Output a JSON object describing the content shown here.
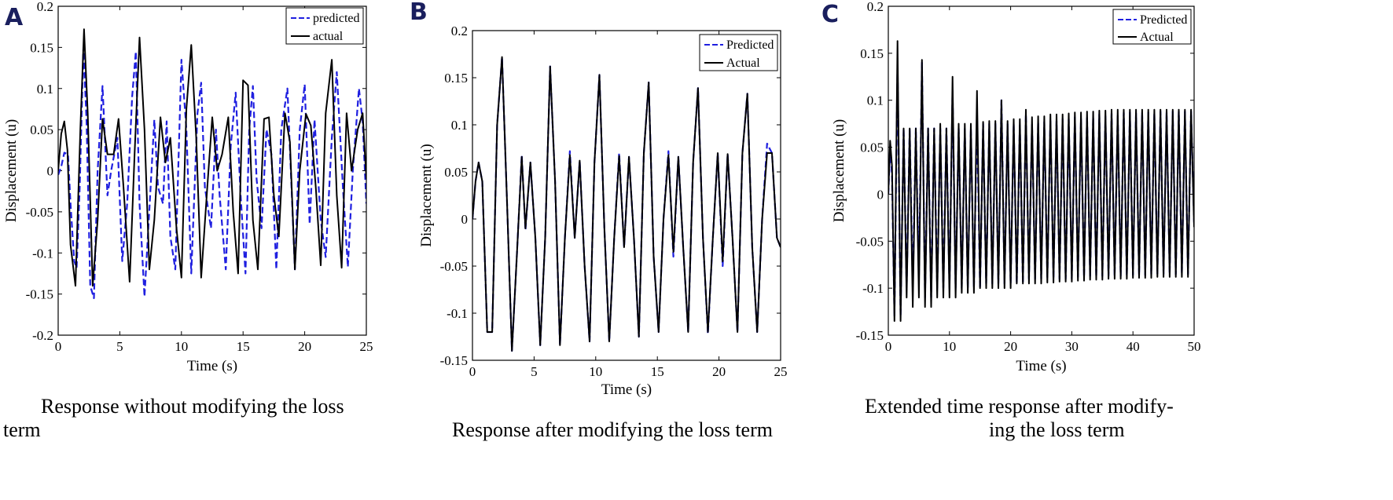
{
  "chart_data": [
    {
      "panel": "A",
      "type": "line",
      "xlabel": "Time (s)",
      "ylabel": "Displacement (u)",
      "xlim": [
        0,
        25
      ],
      "ylim": [
        -0.2,
        0.2
      ],
      "xticks": [
        0,
        5,
        10,
        15,
        20,
        25
      ],
      "yticks": [
        -0.2,
        -0.15,
        -0.1,
        -0.05,
        0,
        0.05,
        0.1,
        0.15,
        0.2
      ],
      "legend_position": "top-right",
      "caption": [
        "Response without modifying the loss",
        "term"
      ],
      "series": [
        {
          "name": "predicted",
          "color": "#1f1fe0",
          "style": "dashed",
          "x": [
            0,
            0.25,
            0.5,
            0.8,
            1.0,
            1.3,
            1.5,
            1.75,
            2.05,
            2.3,
            2.6,
            2.9,
            3.2,
            3.6,
            4.0,
            4.3,
            4.8,
            5.2,
            5.6,
            6.0,
            6.3,
            6.6,
            7.0,
            7.5,
            7.8,
            8.1,
            8.5,
            8.8,
            9.1,
            9.5,
            10.0,
            10.4,
            10.8,
            11.3,
            11.6,
            11.9,
            12.4,
            12.8,
            13.1,
            13.6,
            14.0,
            14.4,
            14.8,
            15.2,
            15.5,
            15.8,
            16.1,
            16.5,
            16.9,
            17.3,
            17.7,
            18.1,
            18.6,
            18.9,
            19.2,
            19.6,
            20.0,
            20.4,
            20.8,
            21.3,
            21.7,
            22.2,
            22.6,
            23.1,
            23.5,
            23.9,
            24.4,
            24.7,
            25.0
          ],
          "y": [
            -0.005,
            0.005,
            0.022,
            0.02,
            -0.04,
            -0.11,
            -0.118,
            -0.02,
            0.15,
            0.06,
            -0.14,
            -0.155,
            0.0,
            0.103,
            -0.03,
            0.0,
            0.04,
            -0.11,
            -0.04,
            0.09,
            0.145,
            -0.04,
            -0.153,
            -0.02,
            0.062,
            -0.02,
            -0.04,
            0.06,
            -0.08,
            -0.12,
            0.135,
            0.05,
            -0.125,
            0.07,
            0.107,
            -0.02,
            -0.07,
            0.05,
            -0.03,
            -0.12,
            0.03,
            0.095,
            -0.03,
            -0.125,
            0.05,
            0.103,
            -0.01,
            -0.07,
            0.05,
            0.02,
            -0.12,
            0.05,
            0.1,
            -0.01,
            -0.12,
            0.05,
            0.105,
            -0.065,
            0.062,
            -0.06,
            -0.105,
            0.04,
            0.12,
            -0.02,
            -0.117,
            0.0,
            0.1,
            0.06,
            -0.04
          ]
        },
        {
          "name": "actual",
          "color": "#000000",
          "style": "solid",
          "x": [
            0,
            0.25,
            0.5,
            0.75,
            1.0,
            1.4,
            1.8,
            2.1,
            2.4,
            2.8,
            3.2,
            3.6,
            4.0,
            4.5,
            4.9,
            5.3,
            5.8,
            6.2,
            6.6,
            7.0,
            7.4,
            7.8,
            8.3,
            8.7,
            9.1,
            9.6,
            10.0,
            10.4,
            10.8,
            11.2,
            11.6,
            12.1,
            12.5,
            12.9,
            13.3,
            13.8,
            14.2,
            14.6,
            15.0,
            15.4,
            15.8,
            16.2,
            16.7,
            17.1,
            17.5,
            17.9,
            18.4,
            18.8,
            19.2,
            19.6,
            20.1,
            20.5,
            20.9,
            21.3,
            21.7,
            22.2,
            22.6,
            23.0,
            23.4,
            23.8,
            24.3,
            24.7,
            25.0
          ],
          "y": [
            0,
            0.045,
            0.06,
            0.025,
            -0.09,
            -0.14,
            0.05,
            0.172,
            0.07,
            -0.14,
            -0.06,
            0.063,
            0.02,
            0.02,
            0.063,
            -0.02,
            -0.135,
            0.02,
            0.162,
            0.05,
            -0.12,
            -0.06,
            0.065,
            0.01,
            0.04,
            -0.07,
            -0.13,
            0.075,
            0.153,
            0.04,
            -0.13,
            -0.02,
            0.065,
            0.0,
            0.02,
            0.065,
            -0.05,
            -0.125,
            0.11,
            0.104,
            -0.06,
            -0.12,
            0.063,
            0.065,
            -0.03,
            -0.08,
            0.07,
            0.035,
            -0.12,
            0.0,
            0.069,
            0.055,
            -0.02,
            -0.115,
            0.07,
            0.135,
            -0.03,
            -0.118,
            0.07,
            0.0,
            0.05,
            0.07,
            -0.01
          ]
        }
      ]
    },
    {
      "panel": "B",
      "type": "line",
      "xlabel": "Time (s)",
      "ylabel": "Displacement (u)",
      "xlim": [
        0,
        25
      ],
      "ylim": [
        -0.15,
        0.2
      ],
      "xticks": [
        0,
        5,
        10,
        15,
        20,
        25
      ],
      "yticks": [
        -0.15,
        -0.1,
        -0.05,
        0,
        0.05,
        0.1,
        0.15,
        0.2
      ],
      "legend_position": "top-right",
      "caption": [
        "Response after modifying the loss term"
      ],
      "series": [
        {
          "name": "Predicted",
          "color": "#1f1fe0",
          "style": "dashed",
          "x": [
            0,
            0.25,
            0.5,
            0.8,
            1.2,
            1.6,
            2.0,
            2.4,
            2.8,
            3.2,
            3.6,
            4.0,
            4.3,
            4.7,
            5.1,
            5.5,
            5.9,
            6.3,
            6.7,
            7.1,
            7.5,
            7.9,
            8.3,
            8.7,
            9.1,
            9.5,
            9.9,
            10.3,
            10.7,
            11.1,
            11.5,
            11.9,
            12.3,
            12.7,
            13.1,
            13.5,
            13.9,
            14.3,
            14.7,
            15.1,
            15.5,
            15.9,
            16.3,
            16.7,
            17.1,
            17.5,
            17.9,
            18.3,
            18.7,
            19.1,
            19.5,
            19.9,
            20.3,
            20.7,
            21.1,
            21.5,
            21.9,
            22.3,
            22.7,
            23.1,
            23.5,
            23.9,
            24.3,
            24.7,
            25.0
          ],
          "y": [
            0,
            0.04,
            0.06,
            0.04,
            -0.12,
            -0.12,
            0.1,
            0.172,
            0.02,
            -0.14,
            -0.04,
            0.068,
            -0.012,
            0.06,
            -0.02,
            -0.134,
            -0.02,
            0.162,
            0.04,
            -0.134,
            -0.02,
            0.072,
            -0.02,
            0.062,
            -0.05,
            -0.13,
            0.06,
            0.153,
            -0.01,
            -0.13,
            -0.02,
            0.07,
            -0.03,
            0.066,
            -0.02,
            -0.125,
            0.07,
            0.145,
            -0.04,
            -0.12,
            0.0,
            0.072,
            -0.04,
            0.066,
            -0.03,
            -0.12,
            0.06,
            0.139,
            -0.02,
            -0.122,
            -0.02,
            0.07,
            -0.05,
            0.069,
            -0.02,
            -0.12,
            0.07,
            0.133,
            -0.03,
            -0.12,
            0.0,
            0.08,
            0.07,
            -0.02,
            -0.03
          ]
        },
        {
          "name": "Actual",
          "color": "#000000",
          "style": "solid",
          "x": [
            0,
            0.25,
            0.5,
            0.8,
            1.2,
            1.6,
            2.0,
            2.4,
            2.8,
            3.2,
            3.6,
            4.0,
            4.3,
            4.7,
            5.1,
            5.5,
            5.9,
            6.3,
            6.7,
            7.1,
            7.5,
            7.9,
            8.3,
            8.7,
            9.1,
            9.5,
            9.9,
            10.3,
            10.7,
            11.1,
            11.5,
            11.9,
            12.3,
            12.7,
            13.1,
            13.5,
            13.9,
            14.3,
            14.7,
            15.1,
            15.5,
            15.9,
            16.3,
            16.7,
            17.1,
            17.5,
            17.9,
            18.3,
            18.7,
            19.1,
            19.5,
            19.9,
            20.3,
            20.7,
            21.1,
            21.5,
            21.9,
            22.3,
            22.7,
            23.1,
            23.5,
            23.9,
            24.3,
            24.7,
            25.0
          ],
          "y": [
            0,
            0.04,
            0.06,
            0.04,
            -0.12,
            -0.12,
            0.1,
            0.172,
            0.02,
            -0.14,
            -0.04,
            0.066,
            -0.01,
            0.06,
            -0.02,
            -0.134,
            -0.02,
            0.162,
            0.04,
            -0.134,
            -0.02,
            0.068,
            -0.02,
            0.062,
            -0.05,
            -0.13,
            0.06,
            0.153,
            -0.01,
            -0.13,
            -0.02,
            0.067,
            -0.03,
            0.066,
            -0.02,
            -0.125,
            0.07,
            0.145,
            -0.04,
            -0.12,
            0.0,
            0.068,
            -0.035,
            0.066,
            -0.03,
            -0.12,
            0.06,
            0.139,
            -0.02,
            -0.12,
            -0.02,
            0.07,
            -0.045,
            0.069,
            -0.02,
            -0.12,
            0.07,
            0.133,
            -0.03,
            -0.12,
            0.0,
            0.07,
            0.07,
            -0.02,
            -0.03
          ]
        }
      ]
    },
    {
      "panel": "C",
      "type": "line",
      "xlabel": "Time (s)",
      "ylabel": "Displacement (u)",
      "xlim": [
        0,
        50
      ],
      "ylim": [
        -0.15,
        0.2
      ],
      "xticks": [
        0,
        10,
        20,
        30,
        40,
        50
      ],
      "yticks": [
        -0.15,
        -0.1,
        -0.05,
        0,
        0.05,
        0.1,
        0.15,
        0.2
      ],
      "legend_position": "top-right",
      "caption": [
        "Extended time response after modify-",
        "ing the loss term"
      ],
      "series": [
        {
          "name": "Predicted",
          "color": "#1f1fe0",
          "style": "dashed",
          "x": [
            0,
            0.3,
            0.6,
            1.0,
            1.5,
            2.0,
            2.5,
            3.0,
            3.5,
            4.0,
            4.5,
            5.0,
            5.5,
            6.0,
            6.5,
            7.0,
            7.5,
            8.0,
            8.5,
            9.0,
            9.5,
            10.0,
            10.5,
            11.0,
            11.5,
            12.0,
            12.5,
            13.0,
            13.5,
            14.0,
            14.5,
            15.0,
            15.5,
            16.0,
            16.5,
            17.0,
            17.5,
            18.0,
            18.5,
            19.0,
            19.5,
            20.0,
            20.5,
            21.0,
            21.5,
            22.0,
            22.5,
            23.0,
            23.5,
            24.0,
            24.5,
            25.0,
            25.5,
            26.0,
            26.5,
            27.0,
            27.5,
            28.0,
            28.5,
            29.0,
            29.5,
            30.0,
            30.5,
            31.0,
            31.5,
            32.0,
            32.5,
            33.0,
            33.5,
            34.0,
            34.5,
            35.0,
            35.5,
            36.0,
            36.5,
            37.0,
            37.5,
            38.0,
            38.5,
            39.0,
            39.5,
            40.0,
            40.5,
            41.0,
            41.5,
            42.0,
            42.5,
            43.0,
            43.5,
            44.0,
            44.5,
            45.0,
            45.5,
            46.0,
            46.5,
            47.0,
            47.5,
            48.0,
            48.5,
            49.0,
            49.5,
            50.0
          ],
          "y": [
            0,
            0.05,
            0.02,
            -0.13,
            0.14,
            -0.13,
            0.07,
            -0.1,
            0.07,
            -0.1,
            0.07,
            -0.09,
            0.14,
            -0.11,
            0.07,
            -0.11,
            0.07,
            -0.1,
            0.07,
            -0.1,
            0.07,
            -0.1,
            0.11,
            -0.1,
            0.07,
            -0.1,
            0.07,
            -0.1,
            0.07,
            -0.1,
            0.085,
            -0.1,
            0.075,
            -0.095,
            0.075,
            -0.095,
            0.075,
            -0.095,
            0.1,
            -0.095,
            0.075,
            -0.095,
            0.075,
            -0.095,
            0.075,
            -0.095,
            0.085,
            -0.09,
            0.075,
            -0.09,
            0.077,
            -0.09,
            0.077,
            -0.09,
            0.08,
            -0.09,
            0.078,
            -0.09,
            0.08,
            -0.09,
            0.08,
            -0.09,
            0.082,
            -0.088,
            0.08,
            -0.088,
            0.083,
            -0.088,
            0.082,
            -0.088,
            0.085,
            -0.087,
            0.083,
            -0.087,
            0.086,
            -0.087,
            0.085,
            -0.087,
            0.087,
            -0.087,
            0.087,
            -0.086,
            0.086,
            -0.086,
            0.087,
            -0.086,
            0.087,
            -0.085,
            0.087,
            -0.085,
            0.088,
            -0.085,
            0.087,
            -0.085,
            0.088,
            -0.085,
            0.088,
            -0.085,
            0.088,
            -0.085,
            0.088,
            -0.03
          ]
        },
        {
          "name": "Actual",
          "color": "#000000",
          "style": "solid",
          "x": [
            0,
            0.3,
            0.6,
            1.0,
            1.5,
            2.0,
            2.5,
            3.0,
            3.5,
            4.0,
            4.5,
            5.0,
            5.5,
            6.0,
            6.5,
            7.0,
            7.5,
            8.0,
            8.5,
            9.0,
            9.5,
            10.0,
            10.5,
            11.0,
            11.5,
            12.0,
            12.5,
            13.0,
            13.5,
            14.0,
            14.5,
            15.0,
            15.5,
            16.0,
            16.5,
            17.0,
            17.5,
            18.0,
            18.5,
            19.0,
            19.5,
            20.0,
            20.5,
            21.0,
            21.5,
            22.0,
            22.5,
            23.0,
            23.5,
            24.0,
            24.5,
            25.0,
            25.5,
            26.0,
            26.5,
            27.0,
            27.5,
            28.0,
            28.5,
            29.0,
            29.5,
            30.0,
            30.5,
            31.0,
            31.5,
            32.0,
            32.5,
            33.0,
            33.5,
            34.0,
            34.5,
            35.0,
            35.5,
            36.0,
            36.5,
            37.0,
            37.5,
            38.0,
            38.5,
            39.0,
            39.5,
            40.0,
            40.5,
            41.0,
            41.5,
            42.0,
            42.5,
            43.0,
            43.5,
            44.0,
            44.5,
            45.0,
            45.5,
            46.0,
            46.5,
            47.0,
            47.5,
            48.0,
            48.5,
            49.0,
            49.5,
            50.0
          ],
          "y": [
            0,
            0.057,
            0.03,
            -0.135,
            0.163,
            -0.135,
            0.07,
            -0.11,
            0.07,
            -0.12,
            0.07,
            -0.11,
            0.143,
            -0.12,
            0.07,
            -0.12,
            0.07,
            -0.11,
            0.075,
            -0.11,
            0.07,
            -0.11,
            0.125,
            -0.11,
            0.075,
            -0.105,
            0.075,
            -0.105,
            0.075,
            -0.105,
            0.11,
            -0.1,
            0.077,
            -0.1,
            0.078,
            -0.1,
            0.078,
            -0.1,
            0.1,
            -0.1,
            0.078,
            -0.1,
            0.08,
            -0.095,
            0.08,
            -0.095,
            0.09,
            -0.095,
            0.082,
            -0.095,
            0.083,
            -0.095,
            0.083,
            -0.094,
            0.085,
            -0.094,
            0.085,
            -0.093,
            0.085,
            -0.093,
            0.086,
            -0.093,
            0.087,
            -0.092,
            0.087,
            -0.092,
            0.088,
            -0.091,
            0.088,
            -0.091,
            0.089,
            -0.091,
            0.089,
            -0.09,
            0.09,
            -0.09,
            0.09,
            -0.09,
            0.09,
            -0.09,
            0.09,
            -0.089,
            0.09,
            -0.089,
            0.09,
            -0.089,
            0.09,
            -0.089,
            0.09,
            -0.088,
            0.09,
            -0.088,
            0.09,
            -0.088,
            0.09,
            -0.088,
            0.09,
            -0.088,
            0.09,
            -0.088,
            0.09,
            -0.035
          ]
        }
      ]
    }
  ]
}
